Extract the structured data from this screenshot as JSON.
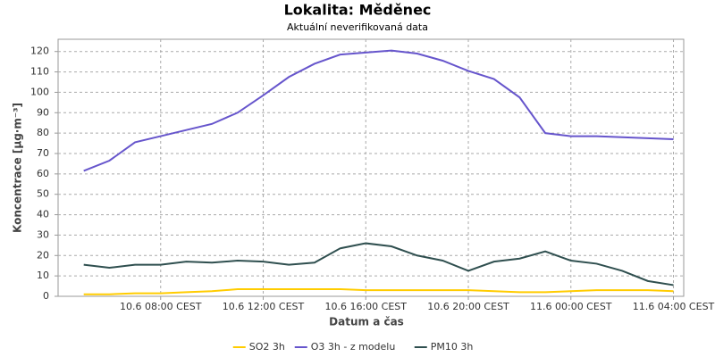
{
  "chart_data": {
    "type": "line",
    "title": "Lokalita: Měděnec",
    "subtitle": "Aktuální neverifikovaná data",
    "x_label": "Datum a čas",
    "y_label": "Koncentrace [µg·m⁻³]",
    "x": [
      5,
      6,
      7,
      8,
      9,
      10,
      11,
      12,
      13,
      14,
      15,
      16,
      17,
      18,
      19,
      20,
      21,
      22,
      23,
      24,
      25,
      26,
      27,
      28
    ],
    "series": [
      {
        "name": "SO2 3h",
        "color": "#ffcc00",
        "values": [
          1,
          1,
          1.5,
          1.5,
          2,
          2.5,
          3.5,
          3.5,
          3.5,
          3.5,
          3.5,
          3,
          3,
          3,
          3,
          3,
          2.5,
          2,
          2,
          2.5,
          3,
          3,
          3,
          2.5
        ]
      },
      {
        "name": "O3 3h - z modelu",
        "color": "#6655cc",
        "values": [
          61.5,
          66.5,
          75.5,
          78.5,
          81.5,
          84.5,
          90,
          98.5,
          107.5,
          114,
          118.5,
          119.5,
          120.5,
          119,
          115.5,
          110.5,
          106.5,
          97.5,
          80,
          78.5,
          78.5,
          78,
          77.5,
          77
        ]
      },
      {
        "name": "PM10 3h",
        "color": "#2f4f4f",
        "values": [
          15.5,
          14,
          15.5,
          15.5,
          17,
          16.5,
          17.5,
          17,
          15.5,
          16.5,
          23.5,
          26,
          24.5,
          20,
          17.5,
          12.5,
          17,
          18.5,
          22,
          17.5,
          16,
          12.5,
          7.5,
          5.5
        ]
      }
    ],
    "xlim": [
      4,
      28.4
    ],
    "xticks": [
      {
        "value": 8,
        "label": "10.6 08:00 CEST"
      },
      {
        "value": 12,
        "label": "10.6 12:00 CEST"
      },
      {
        "value": 16,
        "label": "10.6 16:00 CEST"
      },
      {
        "value": 20,
        "label": "10.6 20:00 CEST"
      },
      {
        "value": 24,
        "label": "11.6 00:00 CEST"
      },
      {
        "value": 28,
        "label": "11.6 04:00 CEST"
      }
    ],
    "ylim": [
      0,
      126
    ],
    "yticks": [
      0,
      10,
      20,
      30,
      40,
      50,
      60,
      70,
      80,
      90,
      100,
      110,
      120
    ],
    "grid": true,
    "legend": "bottom"
  }
}
